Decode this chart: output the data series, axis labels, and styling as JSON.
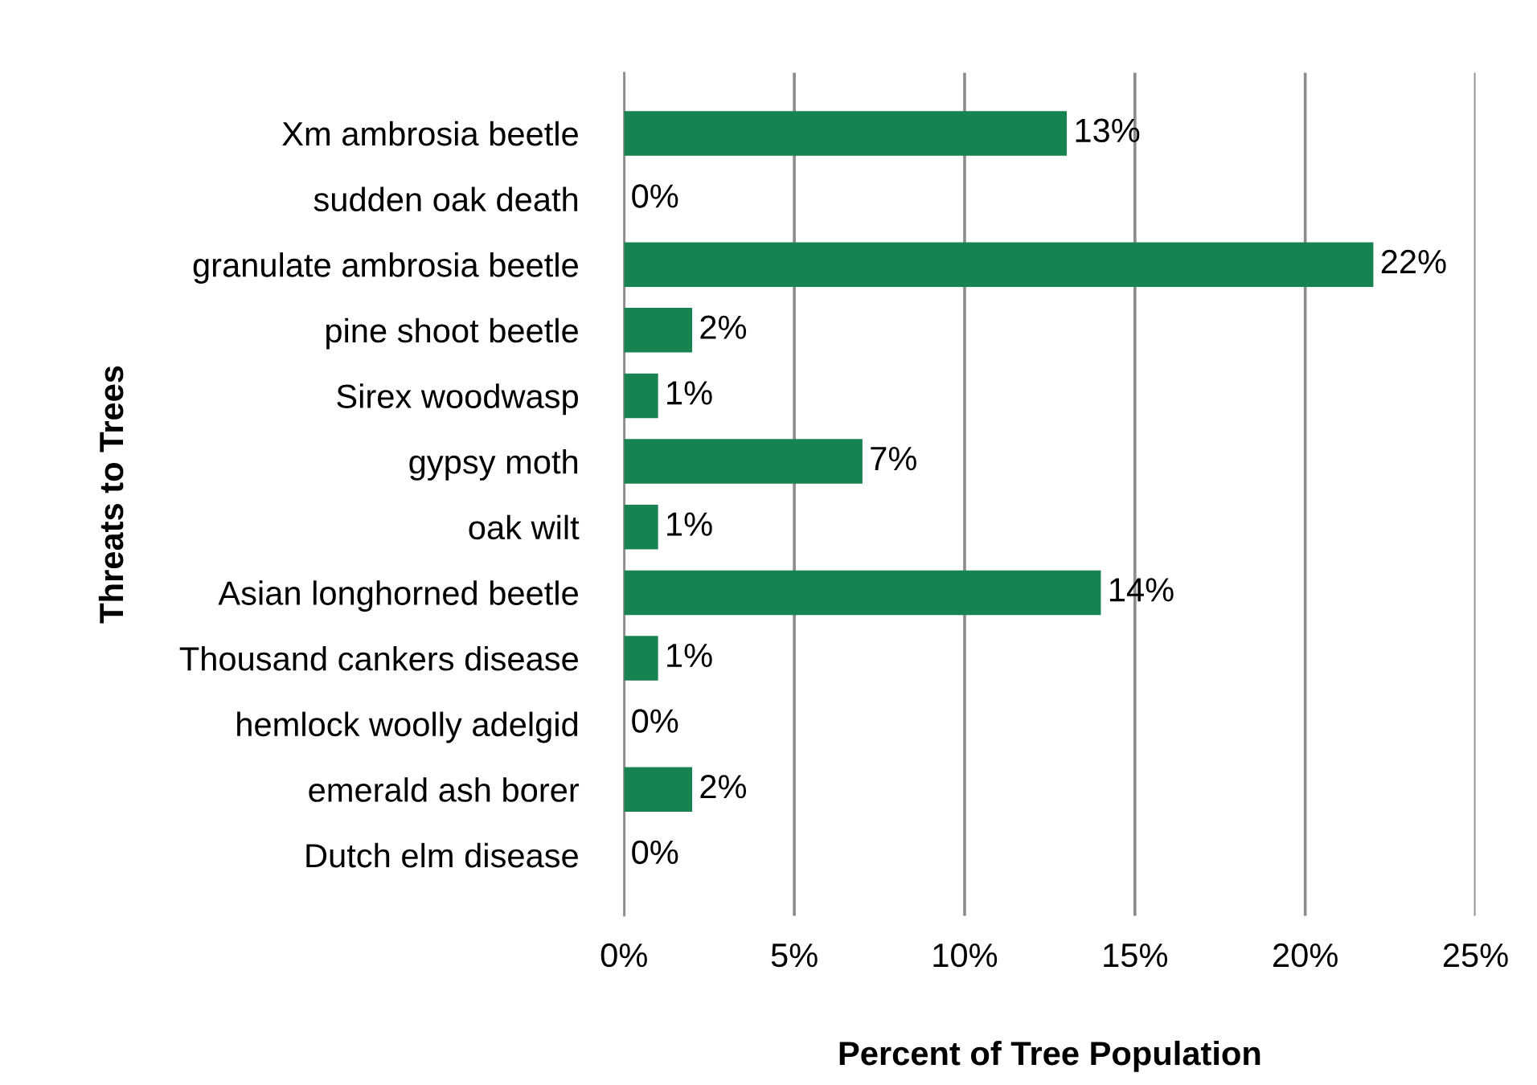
{
  "chart_data": {
    "type": "bar",
    "orientation": "horizontal",
    "xlabel": "Percent of Tree Population",
    "ylabel": "Threats to Trees",
    "categories": [
      "Xm ambrosia beetle",
      "sudden oak death",
      "granulate ambrosia beetle",
      "pine shoot beetle",
      "Sirex woodwasp",
      "gypsy moth",
      "oak wilt",
      "Asian longhorned beetle",
      "Thousand cankers disease",
      "hemlock woolly adelgid",
      "emerald ash borer",
      "Dutch elm disease"
    ],
    "values": [
      13,
      0,
      22,
      2,
      1,
      7,
      1,
      14,
      1,
      0,
      2,
      0
    ],
    "value_labels": [
      "13%",
      "0%",
      "22%",
      "2%",
      "1%",
      "7%",
      "1%",
      "14%",
      "1%",
      "0%",
      "2%",
      "0%"
    ],
    "color": "#178350",
    "xlim": [
      0,
      25
    ],
    "xticks": [
      {
        "value": 0,
        "label": "0%"
      },
      {
        "value": 5,
        "label": "5%"
      },
      {
        "value": 10,
        "label": "10%"
      },
      {
        "value": 15,
        "label": "15%"
      },
      {
        "value": 20,
        "label": "20%"
      },
      {
        "value": 25,
        "label": "25%"
      }
    ],
    "grid": "x",
    "legend": false
  }
}
